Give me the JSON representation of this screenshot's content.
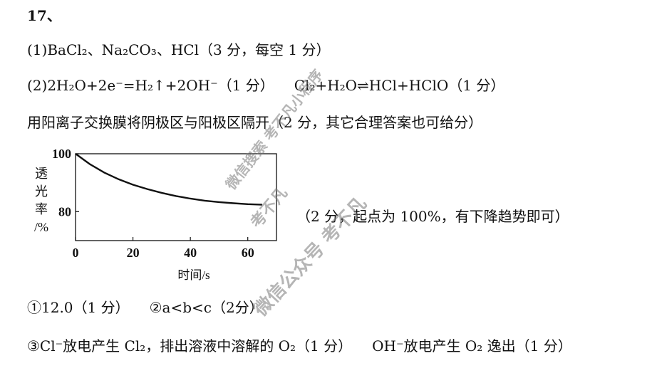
{
  "question_number": "17、",
  "line1": "(1)BaCl₂、Na₂CO₃、HCl（3 分，每空 1 分）",
  "line2_part1": "(2)2H₂O+2e⁻=H₂↑+2OH⁻（1 分）",
  "line2_part2": "Cl₂+H₂O⇌HCl+HClO（1 分）",
  "line3": "用阳离子交换膜将阴极区与阳极区隔开（2 分，其它合理答案也可给分）",
  "chart_note": "（2 分，起点为 100%，有下降趋势即可）",
  "line4_part1": "①12.0（1 分）",
  "line4_part2": "②a<b<c（2分）",
  "line5_part1": "③Cl⁻放电产生 Cl₂，排出溶液中溶解的 O₂（1 分）",
  "line5_part2": "OH⁻放电产生 O₂ 逸出（1 分）",
  "watermarks": [
    "微信搜索 考不凡小程序",
    "考不凡",
    "微信公众号 考不凡"
  ],
  "chart_data": {
    "type": "line",
    "xlabel": "时间/s",
    "ylabel": [
      "透",
      "光",
      "率",
      "/%"
    ],
    "x_ticks": [
      0,
      20,
      40,
      60
    ],
    "y_ticks": [
      80,
      100
    ],
    "xlim": [
      0,
      70
    ],
    "ylim": [
      70,
      100
    ],
    "grid": false,
    "series": [
      {
        "x": [
          0,
          5,
          10,
          15,
          20,
          25,
          30,
          35,
          40,
          45,
          50,
          55,
          60,
          65
        ],
        "y": [
          100,
          96.4,
          93.5,
          91.2,
          89.3,
          87.8,
          86.5,
          85.4,
          84.5,
          83.8,
          83.3,
          82.9,
          82.6,
          82.4
        ]
      }
    ]
  }
}
